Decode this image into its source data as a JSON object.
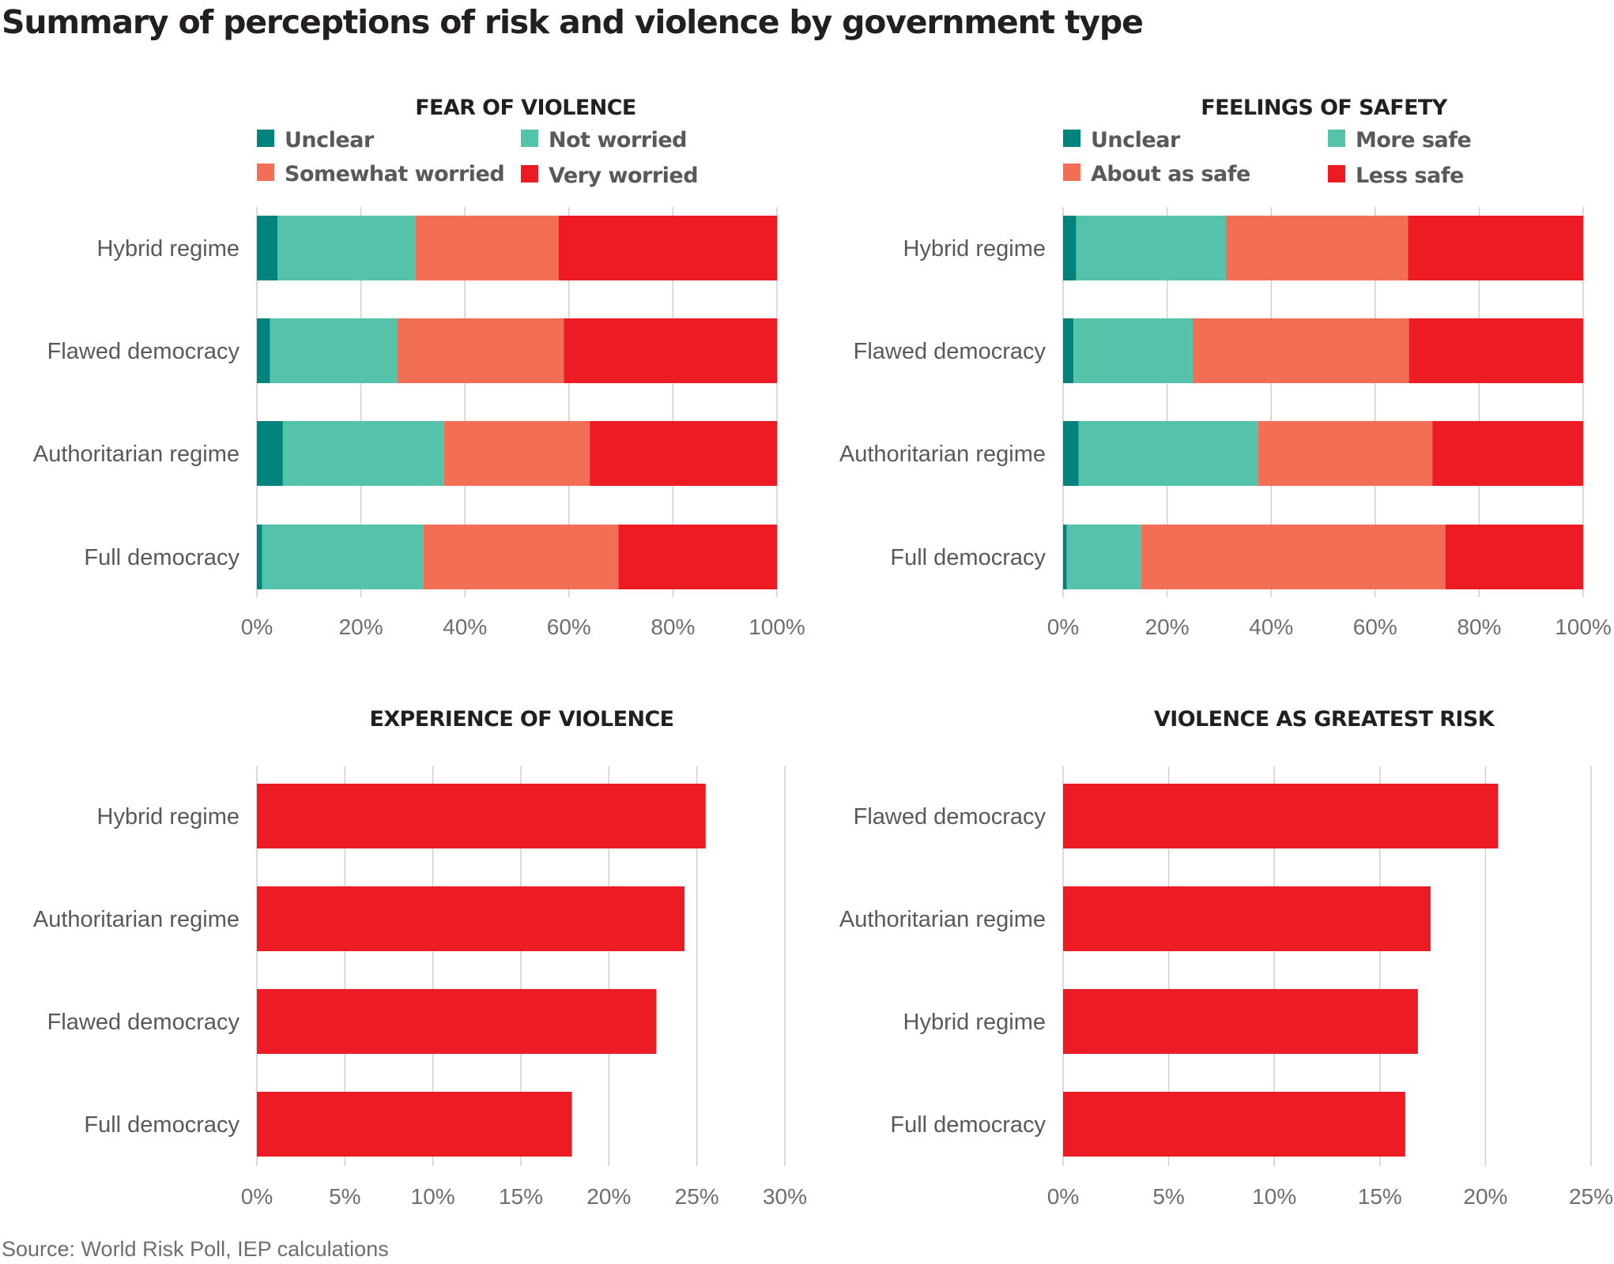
{
  "title": "Summary of perceptions of risk and violence by government type",
  "source": "Source: World Risk Poll, IEP calculations",
  "colors": {
    "dark_teal": "#00837d",
    "teal": "#55c2aa",
    "salmon": "#f26f55",
    "red": "#ed1c24",
    "grid": "#cfcfcf",
    "axis_text": "#6d6e71",
    "label_text": "#58595b",
    "title_text": "#231f20"
  },
  "chart_data": [
    {
      "id": "fear",
      "type": "bar",
      "stacked": true,
      "orientation": "horizontal",
      "title": "FEAR OF VIOLENCE",
      "categories": [
        "Hybrid regime",
        "Flawed democracy",
        "Authoritarian regime",
        "Full democracy"
      ],
      "series": [
        {
          "name": "Unclear",
          "color": "#00837d",
          "values": [
            4,
            2.5,
            5,
            1
          ]
        },
        {
          "name": "Not worried",
          "color": "#55c2aa",
          "values": [
            26.5,
            24.5,
            31,
            31
          ]
        },
        {
          "name": "Somewhat worried",
          "color": "#f26f55",
          "values": [
            27.5,
            32,
            28,
            37.5
          ]
        },
        {
          "name": "Very worried",
          "color": "#ed1c24",
          "values": [
            42,
            41,
            36,
            30.5
          ]
        }
      ],
      "legend": {
        "position": "top",
        "order": [
          "Unclear",
          "Not worried",
          "Somewhat worried",
          "Very worried"
        ]
      },
      "xlim": [
        0,
        100
      ],
      "xticks": [
        0,
        20,
        40,
        60,
        80,
        100
      ],
      "xtick_labels": [
        "0%",
        "20%",
        "40%",
        "60%",
        "80%",
        "100%"
      ],
      "grid": true
    },
    {
      "id": "safety",
      "type": "bar",
      "stacked": true,
      "orientation": "horizontal",
      "title": "FEELINGS OF SAFETY",
      "categories": [
        "Hybrid regime",
        "Flawed democracy",
        "Authoritarian regime",
        "Full democracy"
      ],
      "series": [
        {
          "name": "Unclear",
          "color": "#00837d",
          "values": [
            2.5,
            2,
            3,
            0.7
          ]
        },
        {
          "name": "More safe",
          "color": "#55c2aa",
          "values": [
            28.8,
            23,
            34.5,
            14.3
          ]
        },
        {
          "name": "About as safe",
          "color": "#f26f55",
          "values": [
            35,
            41.5,
            33.5,
            58.5
          ]
        },
        {
          "name": "Less safe",
          "color": "#ed1c24",
          "values": [
            33.7,
            33.5,
            29,
            26.5
          ]
        }
      ],
      "legend": {
        "position": "top",
        "order": [
          "Unclear",
          "More safe",
          "About as safe",
          "Less safe"
        ]
      },
      "xlim": [
        0,
        100
      ],
      "xticks": [
        0,
        20,
        40,
        60,
        80,
        100
      ],
      "xtick_labels": [
        "0%",
        "20%",
        "40%",
        "60%",
        "80%",
        "100%"
      ],
      "grid": true
    },
    {
      "id": "experience",
      "type": "bar",
      "orientation": "horizontal",
      "title": "EXPERIENCE OF VIOLENCE",
      "categories": [
        "Hybrid regime",
        "Authoritarian regime",
        "Flawed democracy",
        "Full democracy"
      ],
      "values": [
        25.5,
        24.3,
        22.7,
        17.9
      ],
      "color": "#ed1c24",
      "xlim": [
        0,
        30
      ],
      "xticks": [
        0,
        5,
        10,
        15,
        20,
        25,
        30
      ],
      "xtick_labels": [
        "0%",
        "5%",
        "10%",
        "15%",
        "20%",
        "25%",
        "30%"
      ],
      "grid": true
    },
    {
      "id": "risk",
      "type": "bar",
      "orientation": "horizontal",
      "title": "VIOLENCE AS GREATEST RISK",
      "categories": [
        "Flawed democracy",
        "Authoritarian regime",
        "Hybrid regime",
        "Full democracy"
      ],
      "values": [
        20.6,
        17.4,
        16.8,
        16.2
      ],
      "color": "#ed1c24",
      "xlim": [
        0,
        25
      ],
      "xticks": [
        0,
        5,
        10,
        15,
        20,
        25
      ],
      "xtick_labels": [
        "0%",
        "5%",
        "10%",
        "15%",
        "20%",
        "25%"
      ],
      "grid": true
    }
  ]
}
